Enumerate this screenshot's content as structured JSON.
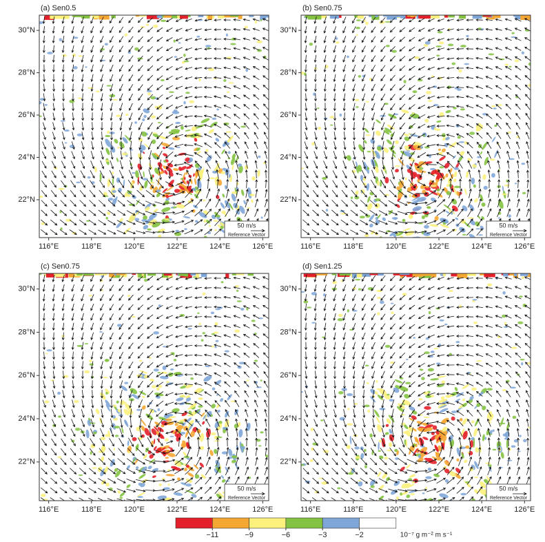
{
  "chart_data": [
    {
      "type": "vector",
      "title": "(a) Sen0.5",
      "xlim": [
        115.56,
        126.28
      ],
      "ylim": [
        20.21,
        30.72
      ],
      "xticks": [
        {
          "value": 116,
          "label": "116°E"
        },
        {
          "value": 118,
          "label": "118°E"
        },
        {
          "value": 120,
          "label": "120°E"
        },
        {
          "value": 122,
          "label": "122°E"
        },
        {
          "value": 124,
          "label": "124°E"
        },
        {
          "value": 126,
          "label": "126°E"
        }
      ],
      "yticks": [
        {
          "value": 22,
          "label": "22°N"
        },
        {
          "value": 24,
          "label": "24°N"
        },
        {
          "value": 26,
          "label": "26°N"
        },
        {
          "value": 28,
          "label": "28°N"
        },
        {
          "value": 30,
          "label": "30°N"
        }
      ]
    },
    {
      "type": "vector",
      "title": "(b) Sen0.75",
      "xlim": [
        115.56,
        126.28
      ],
      "ylim": [
        20.21,
        30.72
      ],
      "xticks": [
        {
          "value": 116,
          "label": "116°E"
        },
        {
          "value": 118,
          "label": "118°E"
        },
        {
          "value": 120,
          "label": "120°E"
        },
        {
          "value": 122,
          "label": "122°E"
        },
        {
          "value": 124,
          "label": "124°E"
        },
        {
          "value": 126,
          "label": "126°E"
        }
      ],
      "yticks": [
        {
          "value": 22,
          "label": "22°N"
        },
        {
          "value": 24,
          "label": "24°N"
        },
        {
          "value": 26,
          "label": "26°N"
        },
        {
          "value": 28,
          "label": "28°N"
        },
        {
          "value": 30,
          "label": "30°N"
        }
      ]
    },
    {
      "type": "vector",
      "title": "(c) Sen0.75",
      "xlim": [
        115.56,
        126.28
      ],
      "ylim": [
        20.21,
        30.72
      ],
      "xticks": [
        {
          "value": 116,
          "label": "116°E"
        },
        {
          "value": 118,
          "label": "118°E"
        },
        {
          "value": 120,
          "label": "120°E"
        },
        {
          "value": 122,
          "label": "122°E"
        },
        {
          "value": 124,
          "label": "124°E"
        },
        {
          "value": 126,
          "label": "126°E"
        }
      ],
      "yticks": [
        {
          "value": 22,
          "label": "22°N"
        },
        {
          "value": 24,
          "label": "24°N"
        },
        {
          "value": 26,
          "label": "26°N"
        },
        {
          "value": 28,
          "label": "28°N"
        },
        {
          "value": 30,
          "label": "30°N"
        }
      ]
    },
    {
      "type": "vector",
      "title": "(d) Sen1.25",
      "xlim": [
        115.56,
        126.28
      ],
      "ylim": [
        20.21,
        30.72
      ],
      "xticks": [
        {
          "value": 116,
          "label": "116°E"
        },
        {
          "value": 118,
          "label": "118°E"
        },
        {
          "value": 120,
          "label": "120°E"
        },
        {
          "value": 122,
          "label": "122°E"
        },
        {
          "value": 124,
          "label": "124°E"
        },
        {
          "value": 126,
          "label": "126°E"
        }
      ],
      "yticks": [
        {
          "value": 22,
          "label": "22°N"
        },
        {
          "value": 24,
          "label": "24°N"
        },
        {
          "value": 26,
          "label": "26°N"
        },
        {
          "value": 28,
          "label": "28°N"
        },
        {
          "value": 30,
          "label": "30°N"
        }
      ]
    }
  ],
  "reference_vector": {
    "label": "50 m/s",
    "caption": "Reference Vector"
  },
  "colorbar": {
    "colors": [
      "#e4202a",
      "#f5a733",
      "#fbf17c",
      "#84c241",
      "#7fa6d8",
      "#ffffff"
    ],
    "ticks": [
      {
        "value": -11,
        "label": "−11"
      },
      {
        "value": -9,
        "label": "−9"
      },
      {
        "value": -6,
        "label": "−6"
      },
      {
        "value": -3,
        "label": "−3"
      },
      {
        "value": -2,
        "label": "−2"
      }
    ],
    "unit": "10⁻⁷ g m⁻² m s⁻¹"
  }
}
